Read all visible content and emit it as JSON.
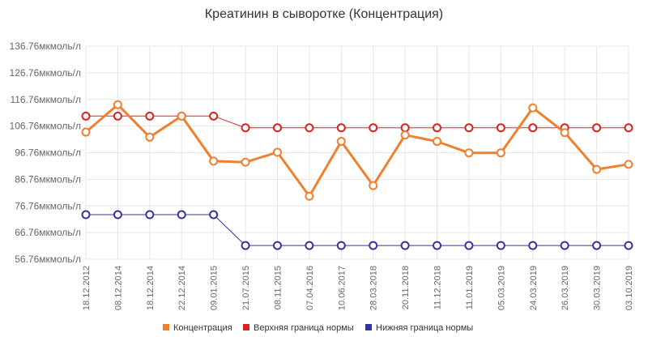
{
  "chart_data": {
    "type": "line",
    "title": "Креатинин в сыворотке (Концентрация)",
    "categories": [
      "18.12.2012",
      "08.12.2014",
      "18.12.2014",
      "22.12.2014",
      "09.01.2015",
      "21.07.2015",
      "08.11.2015",
      "07.04.2016",
      "10.06.2017",
      "28.03.2018",
      "20.11.2018",
      "11.12.2018",
      "11.01.2019",
      "05.03.2019",
      "24.03.2019",
      "26.03.2019",
      "30.03.2019",
      "03.10.2019"
    ],
    "ylim": [
      56.76,
      136.76
    ],
    "yticks": [
      "56.76мкмоль/л",
      "66.76мкмоль/л",
      "76.76мкмоль/л",
      "86.76мкмоль/л",
      "96.76мкмоль/л",
      "106.76мкмоль/л",
      "116.76мкмоль/л",
      "126.76мкмоль/л",
      "136.76мкмоль/л"
    ],
    "ytick_values": [
      56.76,
      66.76,
      76.76,
      86.76,
      96.76,
      106.76,
      116.76,
      126.76,
      136.76
    ],
    "grid": true,
    "legend_position": "bottom",
    "series": [
      {
        "name": "Концентрация",
        "color": "#f08030",
        "values": [
          104.5,
          114.8,
          102.6,
          110.5,
          93.6,
          93.2,
          96.9,
          80.4,
          101.0,
          84.4,
          103.4,
          101.0,
          96.7,
          96.7,
          113.6,
          104.3,
          90.5,
          92.4
        ]
      },
      {
        "name": "Верхняя граница нормы",
        "color": "#e02020",
        "values": [
          110.5,
          110.5,
          110.5,
          110.5,
          110.5,
          106.1,
          106.1,
          106.1,
          106.1,
          106.1,
          106.1,
          106.1,
          106.1,
          106.1,
          106.1,
          106.1,
          106.1,
          106.1
        ]
      },
      {
        "name": "Нижняя граница нормы",
        "color": "#3333a0",
        "values": [
          73.5,
          73.5,
          73.5,
          73.5,
          73.5,
          61.9,
          61.9,
          61.9,
          61.9,
          61.9,
          61.9,
          61.9,
          61.9,
          61.9,
          61.9,
          61.9,
          61.9,
          61.9
        ]
      }
    ]
  }
}
